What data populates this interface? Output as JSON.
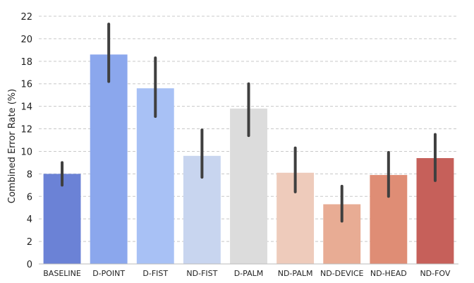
{
  "chart_data": {
    "type": "bar",
    "ylabel": "Combined Error Rate  (%)",
    "ylim": [
      0,
      22
    ],
    "yticks": [
      0,
      2,
      4,
      6,
      8,
      10,
      12,
      14,
      16,
      18,
      20,
      22
    ],
    "grid": "horizontal dashed",
    "categories": [
      "BASELINE",
      "D-POINT",
      "D-FIST",
      "ND-FIST",
      "D-PALM",
      "ND-PALM",
      "ND-DEVICE",
      "ND-HEAD",
      "ND-FOV"
    ],
    "values": [
      8.0,
      18.6,
      15.6,
      9.6,
      13.8,
      8.1,
      5.3,
      7.9,
      9.4
    ],
    "error_low": [
      7.0,
      16.2,
      13.1,
      7.7,
      11.4,
      6.4,
      3.8,
      6.0,
      7.4
    ],
    "error_high": [
      9.0,
      21.3,
      18.3,
      11.9,
      16.0,
      10.3,
      6.9,
      9.9,
      11.5
    ],
    "colors": [
      "#6b82d6",
      "#8ba7ed",
      "#a8c1f5",
      "#c8d5ef",
      "#dcdcdc",
      "#eecbbb",
      "#e8ac94",
      "#df8d75",
      "#c6605a"
    ]
  }
}
